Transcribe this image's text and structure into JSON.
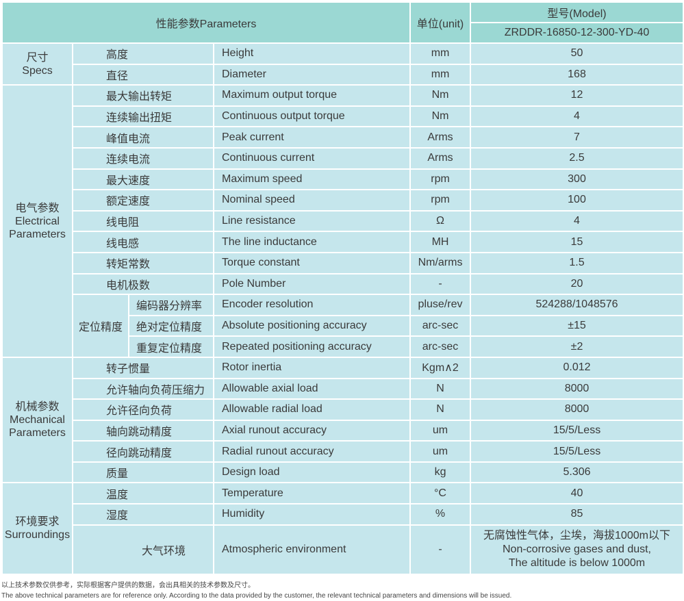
{
  "header": {
    "parameters": "性能参数Parameters",
    "unit": "单位(unit)",
    "model_label": "型号(Model)",
    "model_value": "ZRDDR-16850-12-300-YD-40"
  },
  "groups": [
    {
      "zh": "尺寸",
      "en": "Specs",
      "rows": [
        {
          "zh": "高度",
          "en": "Height",
          "unit": "mm",
          "value": "50"
        },
        {
          "zh": "直径",
          "en": "Diameter",
          "unit": "mm",
          "value": "168"
        }
      ]
    },
    {
      "zh": "电气参数",
      "en": "Electrical Parameters",
      "rows": [
        {
          "zh": "最大输出转矩",
          "en": "Maximum output torque",
          "unit": "Nm",
          "value": "12"
        },
        {
          "zh": "连续输出扭矩",
          "en": "Continuous output torque",
          "unit": "Nm",
          "value": "4"
        },
        {
          "zh": "峰值电流",
          "en": "Peak current",
          "unit": "Arms",
          "value": "7"
        },
        {
          "zh": "连续电流",
          "en": "Continuous current",
          "unit": "Arms",
          "value": "2.5"
        },
        {
          "zh": "最大速度",
          "en": "Maximum speed",
          "unit": "rpm",
          "value": "300"
        },
        {
          "zh": "额定速度",
          "en": "Nominal speed",
          "unit": "rpm",
          "value": "100"
        },
        {
          "zh": "线电阻",
          "en": "Line resistance",
          "unit": "Ω",
          "value": "4"
        },
        {
          "zh": "线电感",
          "en": "The line inductance",
          "unit": "MH",
          "value": "15"
        },
        {
          "zh": "转矩常数",
          "en": "Torque constant",
          "unit": "Nm/arms",
          "value": "1.5"
        },
        {
          "zh": "电机极数",
          "en": "Pole Number",
          "unit": "-",
          "value": "20"
        },
        {
          "sub": "定位精度",
          "zh": "编码器分辨率",
          "en": "Encoder resolution",
          "unit": "pluse/rev",
          "value": "524288/1048576"
        },
        {
          "sub": "定位精度",
          "zh": "绝对定位精度",
          "en": "Absolute positioning accuracy",
          "unit": "arc-sec",
          "value": "±15"
        },
        {
          "sub": "定位精度",
          "zh": "重复定位精度",
          "en": "Repeated positioning accuracy",
          "unit": "arc-sec",
          "value": "±2"
        }
      ]
    },
    {
      "zh": "机械参数",
      "en": "Mechanical Parameters",
      "rows": [
        {
          "zh": "转子惯量",
          "en": "Rotor inertia",
          "unit": "Kgm∧2",
          "value": "0.012"
        },
        {
          "zh": "允许轴向负荷压缩力",
          "en": "Allowable axial load",
          "unit": "N",
          "value": "8000"
        },
        {
          "zh": "允许径向负荷",
          "en": "Allowable radial load",
          "unit": "N",
          "value": "8000"
        },
        {
          "zh": "轴向跳动精度",
          "en": "Axial runout accuracy",
          "unit": "um",
          "value": "15/5/Less"
        },
        {
          "zh": "径向跳动精度",
          "en": "Radial runout accuracy",
          "unit": "um",
          "value": "15/5/Less"
        },
        {
          "zh": "质量",
          "en": "Design load",
          "unit": "kg",
          "value": "5.306"
        }
      ]
    },
    {
      "zh": "环境要求",
      "en": "Surroundings",
      "rows": [
        {
          "zh": "温度",
          "en": "Temperature",
          "unit": "°C",
          "value": "40"
        },
        {
          "zh": "湿度",
          "en": "Humidity",
          "unit": "%",
          "value": "85"
        },
        {
          "zh": "大气环境",
          "en": "Atmospheric environment",
          "unit": "-",
          "value": "无腐蚀性气体，尘埃，海拔1000m以下\nNon-corrosive gases and dust,\nThe altitude is below 1000m",
          "multi": true
        }
      ]
    }
  ],
  "notes": {
    "zh": "以上技术参数仅供参考，实际根据客户提供的数据，会出具相关的技术参数及尺寸。",
    "en": "The above technical parameters are for reference only. According to the data provided by the customer, the relevant technical parameters and dimensions will be issued."
  },
  "colors": {
    "header_bg": "#9bd8d3",
    "body_bg": "#c5e6ec",
    "border": "#ffffff"
  }
}
